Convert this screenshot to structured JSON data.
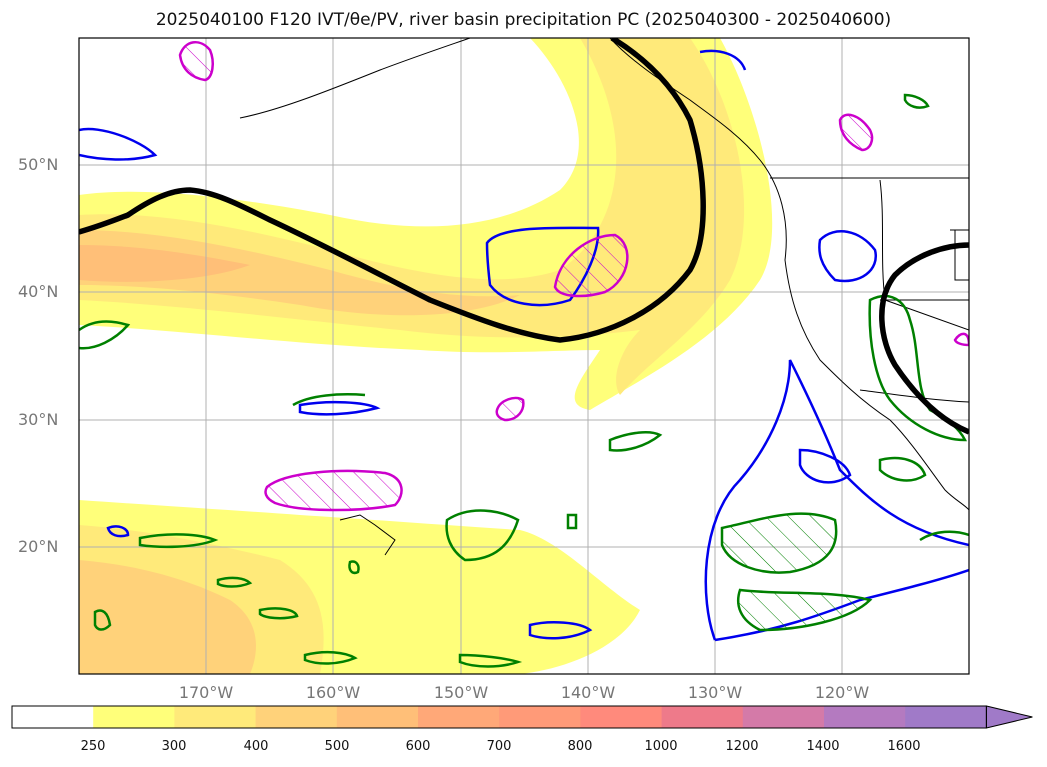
{
  "title": "2025040100 F120 IVT/θe/PV, river basin precipitation PC (2025040300 - 2025040600)",
  "map": {
    "lat_labels": [
      "50°N",
      "40°N",
      "30°N",
      "20°N"
    ],
    "lon_labels": [
      "170°W",
      "160°W",
      "150°W",
      "140°W",
      "130°W",
      "120°W"
    ],
    "background": "#ffffff",
    "graticule_color": "#b0b0b0",
    "frame_color": "#000000"
  },
  "colorbar": {
    "labels": [
      "250",
      "300",
      "400",
      "500",
      "600",
      "700",
      "800",
      "1000",
      "1200",
      "1400",
      "1600"
    ],
    "colors": [
      "#ffffff",
      "#ffff7a",
      "#ffea7a",
      "#ffd27a",
      "#ffbf78",
      "#ffa878",
      "#ff9a78",
      "#ff8a7c",
      "#ee7a8a",
      "#d47aa8",
      "#b47ac0",
      "#a07ac8"
    ],
    "extend": "max"
  },
  "contour_colors": {
    "pv": "#0000ee",
    "precip": "#008000",
    "theta_e": "#cc00cc",
    "jet": "#000000"
  }
}
